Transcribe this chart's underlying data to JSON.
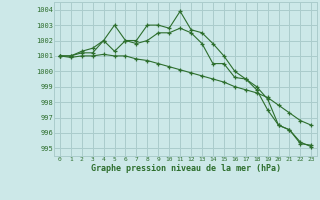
{
  "background_color": "#cce8e8",
  "grid_color": "#aacccc",
  "line_color": "#2d6e2d",
  "xlabel": "Graphe pression niveau de la mer (hPa)",
  "xlim": [
    -0.5,
    23.5
  ],
  "ylim": [
    994.5,
    1004.5
  ],
  "yticks": [
    995,
    996,
    997,
    998,
    999,
    1000,
    1001,
    1002,
    1003,
    1004
  ],
  "xticks": [
    0,
    1,
    2,
    3,
    4,
    5,
    6,
    7,
    8,
    9,
    10,
    11,
    12,
    13,
    14,
    15,
    16,
    17,
    18,
    19,
    20,
    21,
    22,
    23
  ],
  "series1": [
    1001.0,
    1001.0,
    1001.3,
    1001.5,
    1002.0,
    1003.0,
    1002.0,
    1002.0,
    1003.0,
    1003.0,
    1002.8,
    1003.9,
    1002.7,
    1002.5,
    1001.8,
    1001.0,
    1000.0,
    999.5,
    999.0,
    998.2,
    996.5,
    996.2,
    995.3,
    995.2
  ],
  "series2": [
    1001.0,
    1001.0,
    1001.2,
    1001.2,
    1002.0,
    1001.3,
    1002.0,
    1001.8,
    1002.0,
    1002.5,
    1002.5,
    1002.8,
    1002.5,
    1001.8,
    1000.5,
    1000.5,
    999.6,
    999.5,
    998.8,
    997.5,
    996.5,
    996.2,
    995.4,
    995.1
  ],
  "series3": [
    1001.0,
    1000.9,
    1001.0,
    1001.0,
    1001.1,
    1001.0,
    1001.0,
    1000.8,
    1000.7,
    1000.5,
    1000.3,
    1000.1,
    999.9,
    999.7,
    999.5,
    999.3,
    999.0,
    998.8,
    998.6,
    998.3,
    997.8,
    997.3,
    996.8,
    996.5
  ]
}
